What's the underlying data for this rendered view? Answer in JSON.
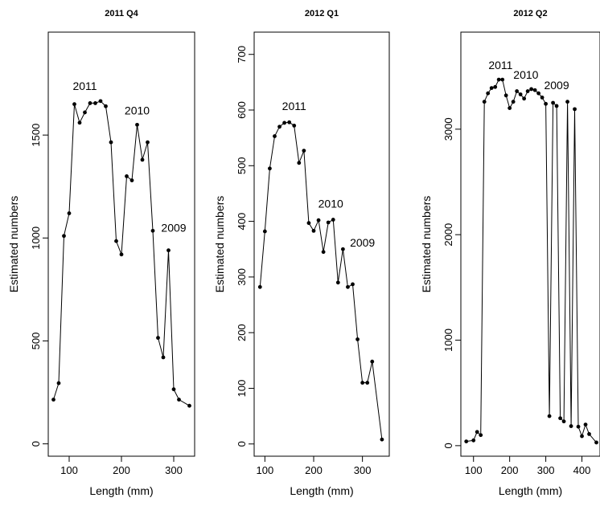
{
  "chart_data": [
    {
      "type": "line",
      "title": "2011 Q4",
      "xlabel": "Length (mm)",
      "ylabel": "Estimated numbers",
      "xlim": [
        60,
        340
      ],
      "ylim": [
        -60,
        2000
      ],
      "xticks": [
        100,
        200,
        300
      ],
      "yticks": [
        0,
        500,
        1000,
        1500
      ],
      "grid": false,
      "x": [
        70,
        80,
        90,
        100,
        110,
        120,
        130,
        140,
        150,
        160,
        170,
        180,
        190,
        200,
        210,
        220,
        230,
        240,
        250,
        260,
        270,
        280,
        290,
        300,
        310,
        330
      ],
      "y": [
        215,
        295,
        1010,
        1120,
        1650,
        1560,
        1610,
        1655,
        1655,
        1665,
        1640,
        1465,
        985,
        920,
        1300,
        1280,
        1550,
        1380,
        1465,
        1035,
        515,
        420,
        940,
        265,
        215,
        185
      ],
      "annotations": [
        {
          "text": "2011",
          "x": 130,
          "y": 1720
        },
        {
          "text": "2010",
          "x": 230,
          "y": 1600
        },
        {
          "text": "2009",
          "x": 300,
          "y": 1030
        }
      ]
    },
    {
      "type": "line",
      "title": "2012 Q1",
      "xlabel": "Length (mm)",
      "ylabel": "Estimated numbers",
      "xlim": [
        78,
        355
      ],
      "ylim": [
        -22,
        740
      ],
      "xticks": [
        100,
        200,
        300
      ],
      "yticks": [
        0,
        100,
        200,
        300,
        400,
        500,
        600,
        700
      ],
      "grid": false,
      "x": [
        90,
        100,
        110,
        120,
        130,
        140,
        150,
        160,
        170,
        180,
        190,
        200,
        210,
        220,
        230,
        240,
        250,
        260,
        270,
        280,
        290,
        300,
        310,
        320,
        340
      ],
      "y": [
        282,
        382,
        495,
        553,
        570,
        577,
        578,
        572,
        505,
        527,
        397,
        383,
        402,
        345,
        398,
        403,
        290,
        350,
        282,
        287,
        188,
        110,
        110,
        148,
        8
      ],
      "annotations": [
        {
          "text": "2011",
          "x": 160,
          "y": 600
        },
        {
          "text": "2010",
          "x": 235,
          "y": 425
        },
        {
          "text": "2009",
          "x": 300,
          "y": 355
        }
      ]
    },
    {
      "type": "line",
      "title": "2012 Q2",
      "xlabel": "Length (mm)",
      "ylabel": "Estimated numbers",
      "xlim": [
        65,
        450
      ],
      "ylim": [
        -100,
        3920
      ],
      "xticks": [
        100,
        200,
        300,
        400
      ],
      "yticks": [
        0,
        1000,
        2000,
        3000
      ],
      "grid": false,
      "x": [
        80,
        100,
        110,
        120,
        130,
        140,
        150,
        160,
        170,
        180,
        190,
        200,
        210,
        220,
        230,
        240,
        250,
        260,
        270,
        280,
        290,
        300,
        310,
        320,
        330,
        340,
        350,
        360,
        370,
        380,
        390,
        400,
        410,
        420,
        440
      ],
      "y": [
        40,
        50,
        130,
        100,
        3260,
        3340,
        3390,
        3400,
        3470,
        3470,
        3320,
        3200,
        3260,
        3360,
        3330,
        3290,
        3360,
        3380,
        3370,
        3340,
        3300,
        3240,
        280,
        3250,
        3220,
        260,
        230,
        3260,
        185,
        3190,
        180,
        90,
        200,
        110,
        30
      ],
      "annotations": [
        {
          "text": "2011",
          "x": 175,
          "y": 3570
        },
        {
          "text": "2010",
          "x": 245,
          "y": 3480
        },
        {
          "text": "2009",
          "x": 330,
          "y": 3380
        }
      ]
    }
  ]
}
